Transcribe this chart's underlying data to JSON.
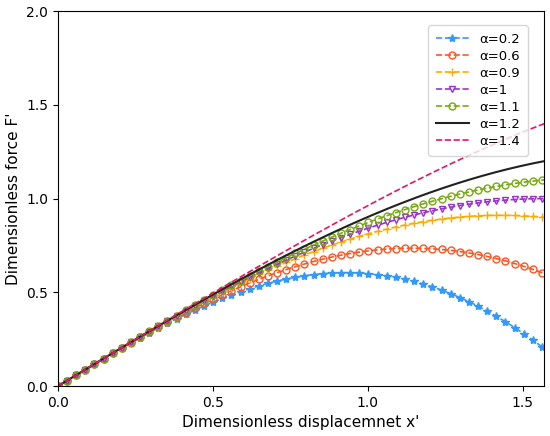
{
  "xlabel": "Dimensionless displacemnet x'",
  "ylabel": "Dimensionless force F'",
  "xlim": [
    0,
    1.5708
  ],
  "ylim": [
    0,
    2.0
  ],
  "xticks": [
    0,
    0.5,
    1.0,
    1.5
  ],
  "yticks": [
    0,
    0.5,
    1.0,
    1.5,
    2.0
  ],
  "series": [
    {
      "alpha": 0.2,
      "color": "#3399FF",
      "linestyle": "--",
      "marker": "*",
      "markersize": 6,
      "open": false,
      "label": "α=0.2"
    },
    {
      "alpha": 0.6,
      "color": "#FF5522",
      "linestyle": "--",
      "marker": "o",
      "markersize": 5,
      "open": true,
      "label": "α=0.6"
    },
    {
      "alpha": 0.9,
      "color": "#FFAA00",
      "linestyle": "--",
      "marker": "+",
      "markersize": 6,
      "open": false,
      "label": "α=0.9"
    },
    {
      "alpha": 1.0,
      "color": "#9933CC",
      "linestyle": "--",
      "marker": "v",
      "markersize": 5,
      "open": true,
      "label": "α=1"
    },
    {
      "alpha": 1.1,
      "color": "#77AA11",
      "linestyle": "--",
      "marker": "o",
      "markersize": 5,
      "open": true,
      "label": "α=1.1"
    },
    {
      "alpha": 1.2,
      "color": "#222222",
      "linestyle": "-",
      "marker": "",
      "markersize": 0,
      "open": false,
      "label": "α=1.2"
    },
    {
      "alpha": 1.4,
      "color": "#EE1166",
      "linestyle": "--",
      "marker": "",
      "markersize": 0,
      "open": false,
      "label": "α=1.4"
    }
  ],
  "figsize": [
    5.5,
    4.36
  ],
  "dpi": 100,
  "markevery": 15
}
